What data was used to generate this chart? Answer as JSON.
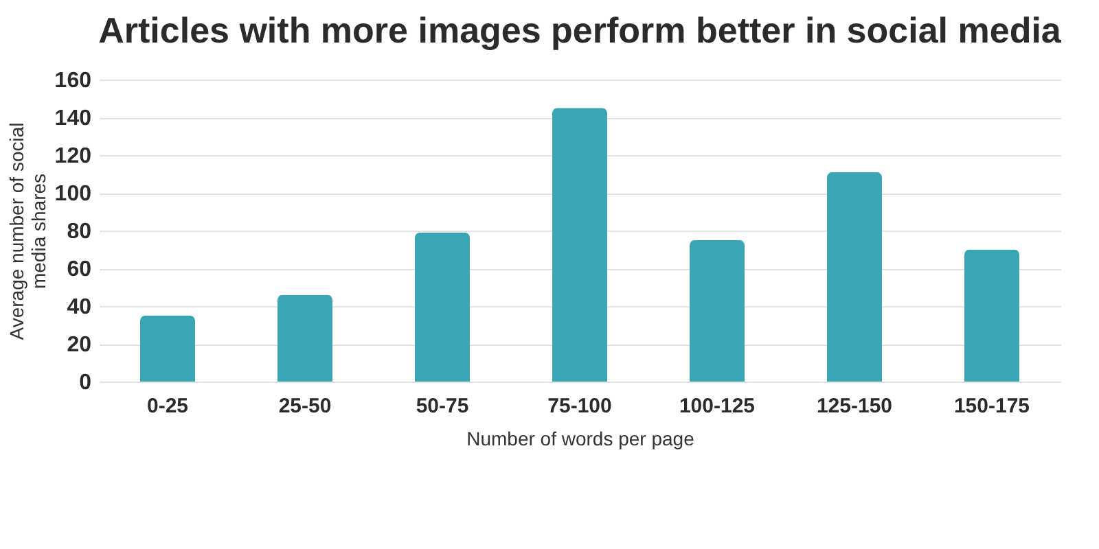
{
  "chart_data": {
    "type": "bar",
    "title": "Articles with more images perform better in social media",
    "xlabel": "Number of words per page",
    "ylabel": "Average number of social media shares",
    "categories": [
      "0-25",
      "25-50",
      "50-75",
      "75-100",
      "100-125",
      "125-150",
      "150-175"
    ],
    "values": [
      35,
      46,
      79,
      145,
      75,
      111,
      70
    ],
    "color": "#3aa5b3",
    "ylim": [
      0,
      160
    ],
    "yticks": [
      0,
      20,
      40,
      60,
      80,
      100,
      120,
      140,
      160
    ],
    "grid": "y"
  }
}
